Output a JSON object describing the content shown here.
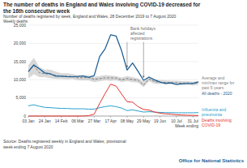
{
  "chart_data": {
    "type": "line",
    "title": "The number of deaths in England and Wales involving COVID-19 decreased for the 16th consecutive week",
    "subtitle": "Number of deaths registered by week, England and Wales, 28 December 2019 to 7 August 2020",
    "ylabel": "Weekly deaths",
    "xlabel": "Week ending",
    "source": "Source: Deaths registered weekly in England and Wales, provisional: week ending 7 August 2020",
    "credit": "Office for National Statistics",
    "categories": [
      "03 Jan",
      null,
      null,
      "24 Jan",
      null,
      null,
      "14 Feb",
      null,
      null,
      "06 Mar",
      null,
      null,
      "27 Mar",
      null,
      null,
      "17 Apr",
      null,
      null,
      "08 May",
      null,
      null,
      "29 May",
      null,
      null,
      "19 Jun",
      null,
      null,
      "10 Jul",
      null,
      null,
      "31 Jul",
      null
    ],
    "ylim": [
      0,
      25000
    ],
    "yticks": [
      0,
      {
        "value": 5000,
        "label": "5,000"
      },
      {
        "value": 10000,
        "label": "10,000"
      },
      {
        "value": 15000,
        "label": "15,000"
      },
      {
        "value": 20000,
        "label": "20,000"
      },
      {
        "value": 25000,
        "label": "25,000"
      }
    ],
    "grid": true,
    "legend": "right",
    "annotations": [
      {
        "text": "Bank holidays affected registrations",
        "points": [
          "08 May",
          "29 May"
        ]
      }
    ],
    "series": [
      {
        "name": "Average and min/max range for past 5 years",
        "color": "#7f7f7f",
        "line_style": "dashed",
        "values": [
          12175,
          13822,
          11925,
          11627,
          11548,
          11183,
          10957,
          10929,
          10926,
          10530,
          10559,
          10573,
          10130,
          10305,
          10520,
          10497,
          10458,
          9941,
          10303,
          10008,
          9858,
          8529,
          10199,
          9470,
          9290,
          9246,
          9153,
          9189,
          9040,
          9114,
          8957,
          9100
        ],
        "min": [
          10300,
          11500,
          10700,
          10700,
          10400,
          10200,
          10200,
          10100,
          10200,
          9900,
          9800,
          9800,
          9300,
          9600,
          9800,
          9700,
          9800,
          9300,
          9600,
          9300,
          9200,
          7900,
          9600,
          8900,
          8800,
          8800,
          8700,
          8700,
          8500,
          8600,
          8400,
          8600
        ],
        "max": [
          14000,
          16000,
          13500,
          12800,
          12800,
          12200,
          11800,
          11800,
          11600,
          11200,
          11300,
          11200,
          10800,
          11000,
          11300,
          11100,
          11000,
          10600,
          11000,
          10700,
          10400,
          9500,
          10800,
          10100,
          9900,
          9800,
          9700,
          9700,
          9600,
          9600,
          9500,
          9600
        ]
      },
      {
        "name": "All deaths - 2020",
        "color": "#206095",
        "line_style": "solid",
        "values": [
          12254,
          14058,
          12990,
          11856,
          11612,
          10986,
          10944,
          10841,
          10816,
          10895,
          11019,
          10645,
          11141,
          16387,
          18516,
          22351,
          21997,
          17953,
          12657,
          14573,
          12288,
          9824,
          10709,
          9976,
          9339,
          8979,
          9140,
          8690,
          8891,
          8937,
          8946,
          9392
        ]
      },
      {
        "name": "Influenza and pneumonia",
        "color": "#27a0cc",
        "line_style": "solid",
        "values": [
          2800,
          3100,
          2700,
          2400,
          2300,
          2200,
          2100,
          2100,
          2000,
          2000,
          2000,
          1900,
          1900,
          2300,
          2600,
          2800,
          2600,
          2200,
          1500,
          1700,
          1400,
          1100,
          1200,
          1100,
          1000,
          950,
          950,
          900,
          900,
          900,
          900,
          950
        ]
      },
      {
        "name": "Deaths involving COVID-19",
        "color": "#e3342f",
        "line_style": "solid",
        "values": [
          0,
          0,
          0,
          0,
          0,
          0,
          0,
          0,
          0,
          0,
          5,
          103,
          539,
          3475,
          6213,
          8758,
          8237,
          6035,
          3930,
          3810,
          2589,
          1822,
          1652,
          1114,
          783,
          606,
          532,
          366,
          295,
          217,
          193,
          152
        ]
      }
    ]
  }
}
